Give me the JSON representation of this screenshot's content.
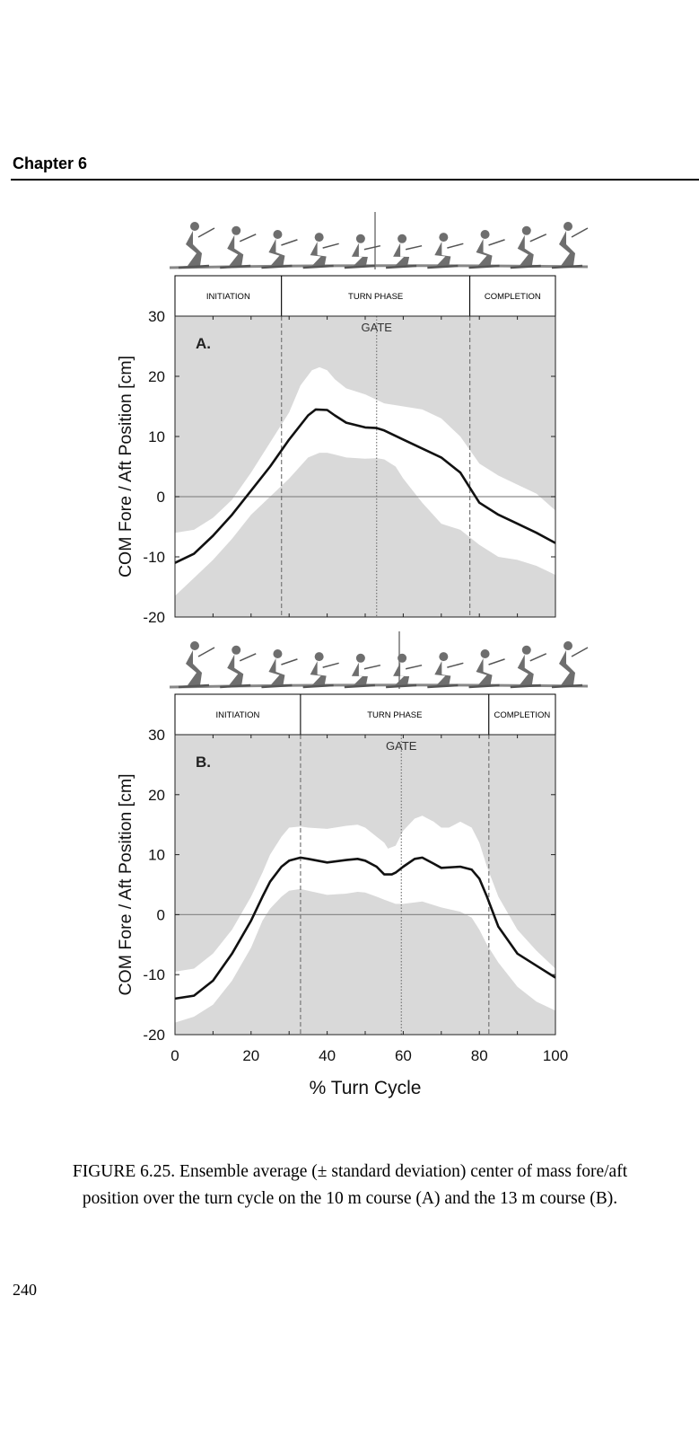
{
  "page": {
    "chapter": "Chapter 6",
    "caption_line1": "FIGURE 6.25.  Ensemble average (± standard deviation) center of mass fore/aft",
    "caption_line2": "position over the turn cycle on the 10 m course (A) and the 13 m course (B).",
    "page_number": "240"
  },
  "colors": {
    "background_band": "#d9d9d9",
    "sd_band": "#ffffff",
    "mean_line": "#111111",
    "zero_line": "#8c8c8c",
    "skier_silhouette": "#6e6e6e"
  },
  "chart_data": [
    {
      "type": "line",
      "panel_label": "A.",
      "ylabel": "COM Fore / Aft Position [cm]",
      "xlabel": "",
      "xlim": [
        0,
        100
      ],
      "ylim": [
        -20,
        30
      ],
      "yticks": [
        -20,
        -10,
        0,
        10,
        20,
        30
      ],
      "phases": [
        {
          "label": "INITIATION",
          "start": 0,
          "end": 28
        },
        {
          "label": "TURN PHASE",
          "start": 28,
          "end": 77.5
        },
        {
          "label": "COMPLETION",
          "start": 77.5,
          "end": 100
        }
      ],
      "phase_boundaries": [
        28,
        77.5
      ],
      "gate": {
        "label": "GATE",
        "x": 53
      },
      "series": [
        {
          "stat": "mean",
          "x": [
            0,
            5,
            10,
            15,
            20,
            25,
            30,
            35,
            37,
            40,
            42,
            45,
            50,
            53,
            55,
            60,
            65,
            70,
            75,
            78,
            80,
            85,
            90,
            95,
            100
          ],
          "y": [
            -11,
            -9.5,
            -6.5,
            -3,
            1,
            5,
            9.5,
            13.5,
            14.5,
            14.4,
            13.5,
            12.3,
            11.5,
            11.4,
            11,
            9.5,
            8,
            6.5,
            4,
            1,
            -1,
            -3,
            -4.5,
            -6,
            -7.7
          ]
        },
        {
          "stat": "mean + sd",
          "x": [
            0,
            5,
            10,
            15,
            20,
            25,
            30,
            33,
            36,
            38,
            40,
            42,
            45,
            50,
            55,
            60,
            65,
            70,
            75,
            80,
            85,
            90,
            95,
            100
          ],
          "y": [
            -6,
            -5.5,
            -3.5,
            -0.5,
            4,
            9,
            14,
            18.5,
            21,
            21.5,
            21,
            19.5,
            18,
            17,
            15.5,
            15,
            14.5,
            13,
            10,
            5.5,
            3.5,
            2,
            0.5,
            -2.3
          ]
        },
        {
          "stat": "mean - sd",
          "x": [
            0,
            5,
            10,
            15,
            20,
            25,
            30,
            35,
            38,
            40,
            42,
            45,
            50,
            53,
            55,
            58,
            60,
            65,
            70,
            75,
            80,
            85,
            90,
            95,
            100
          ],
          "y": [
            -16.5,
            -13.5,
            -10.5,
            -7,
            -3,
            0,
            3,
            6.5,
            7.3,
            7.3,
            7,
            6.5,
            6.3,
            6.4,
            6.2,
            5,
            3,
            -1,
            -4.5,
            -5.5,
            -8,
            -10,
            -10.5,
            -11.5,
            -13
          ]
        }
      ]
    },
    {
      "type": "line",
      "panel_label": "B.",
      "ylabel": "COM Fore / Aft Position [cm]",
      "xlabel": "% Turn Cycle",
      "xlim": [
        0,
        100
      ],
      "ylim": [
        -20,
        30
      ],
      "xticks": [
        0,
        20,
        40,
        60,
        80,
        100
      ],
      "yticks": [
        -20,
        -10,
        0,
        10,
        20,
        30
      ],
      "phases": [
        {
          "label": "INITIATION",
          "start": 0,
          "end": 33
        },
        {
          "label": "TURN PHASE",
          "start": 33,
          "end": 82.5
        },
        {
          "label": "COMPLETION",
          "start": 82.5,
          "end": 100
        }
      ],
      "phase_boundaries": [
        33,
        82.5
      ],
      "gate": {
        "label": "GATE",
        "x": 59.5
      },
      "series": [
        {
          "stat": "mean",
          "x": [
            0,
            5,
            10,
            15,
            20,
            23,
            25,
            28,
            30,
            33,
            35,
            40,
            45,
            48,
            50,
            53,
            55,
            57,
            58,
            60,
            63,
            65,
            68,
            70,
            75,
            78,
            80,
            82,
            85,
            90,
            95,
            100
          ],
          "y": [
            -14,
            -13.5,
            -11,
            -6.5,
            -1,
            3,
            5.5,
            8,
            9,
            9.5,
            9.3,
            8.7,
            9.1,
            9.3,
            9,
            8,
            6.7,
            6.7,
            7,
            8,
            9.3,
            9.5,
            8.5,
            7.8,
            8,
            7.5,
            6,
            3,
            -2,
            -6.5,
            -8.5,
            -10.5
          ]
        },
        {
          "stat": "mean + sd",
          "x": [
            0,
            5,
            10,
            15,
            20,
            23,
            25,
            28,
            30,
            33,
            35,
            40,
            45,
            48,
            50,
            53,
            55,
            56,
            58,
            60,
            63,
            65,
            68,
            70,
            72,
            75,
            78,
            80,
            82,
            85,
            90,
            95,
            100
          ],
          "y": [
            -9.5,
            -9,
            -6.5,
            -2.5,
            3,
            7,
            10,
            13,
            14.5,
            14.7,
            14.5,
            14.3,
            14.8,
            15,
            14.5,
            13,
            12,
            11,
            11.5,
            14,
            16,
            16.5,
            15.5,
            14.5,
            14.5,
            15.5,
            14.5,
            12,
            8,
            3,
            -2.5,
            -6,
            -9
          ]
        },
        {
          "stat": "mean - sd",
          "x": [
            0,
            5,
            10,
            15,
            20,
            23,
            25,
            28,
            30,
            33,
            35,
            40,
            45,
            48,
            50,
            53,
            55,
            58,
            60,
            65,
            70,
            75,
            78,
            80,
            82,
            85,
            90,
            95,
            100
          ],
          "y": [
            -18,
            -17,
            -15,
            -11,
            -5.5,
            -1,
            1,
            3,
            4,
            4.3,
            4,
            3.3,
            3.5,
            3.8,
            3.7,
            3,
            2.5,
            1.8,
            1.8,
            2.2,
            1.2,
            0.5,
            -0.5,
            -2.5,
            -5,
            -8,
            -12,
            -14.5,
            -16
          ]
        }
      ]
    }
  ]
}
